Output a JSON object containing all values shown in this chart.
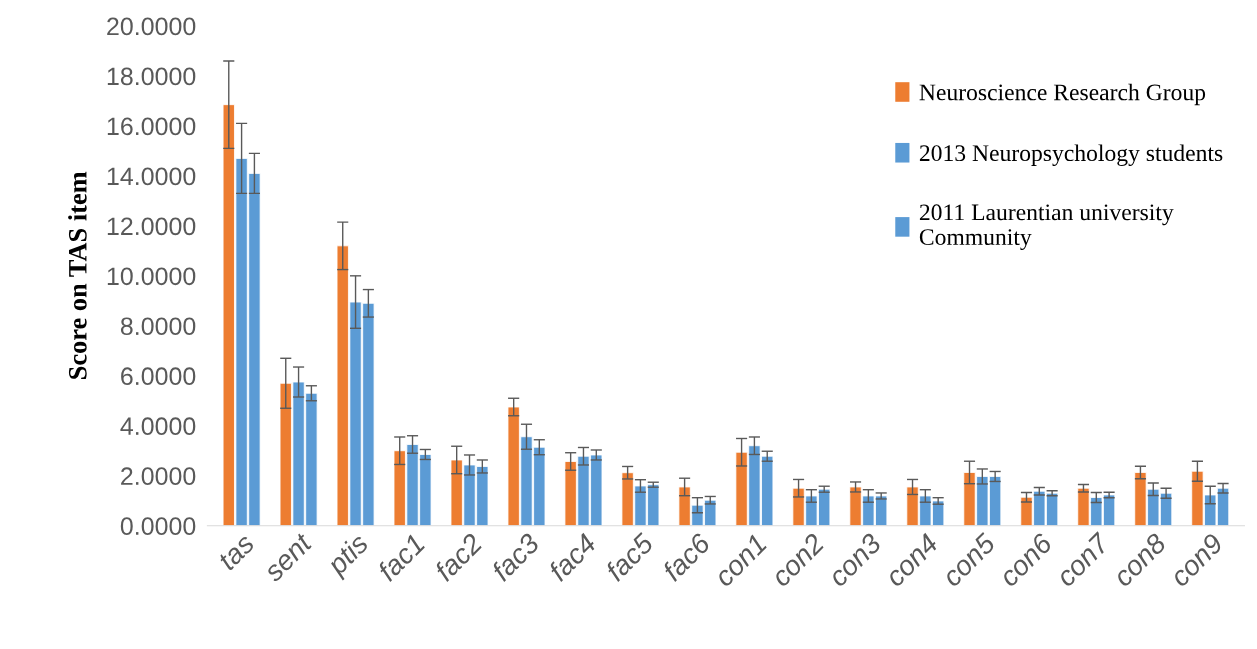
{
  "chart_data": {
    "type": "bar",
    "ylabel": "Score on TAS item",
    "categories": [
      "tas",
      "sent",
      "ptis",
      "fac1",
      "fac2",
      "fac3",
      "fac4",
      "fac5",
      "fac6",
      "con1",
      "con2",
      "con3",
      "con4",
      "con5",
      "con6",
      "con7",
      "con8",
      "con9"
    ],
    "series": [
      {
        "name": "Neuroscience Research Group",
        "color": "#ed7d31",
        "values": [
          16.85,
          5.7,
          11.2,
          3.0,
          2.63,
          4.75,
          2.57,
          2.12,
          1.55,
          2.94,
          1.5,
          1.55,
          1.55,
          2.13,
          1.14,
          1.5,
          2.13,
          2.18
        ],
        "errors": [
          1.75,
          1.0,
          0.95,
          0.55,
          0.55,
          0.35,
          0.35,
          0.25,
          0.35,
          0.55,
          0.35,
          0.2,
          0.3,
          0.45,
          0.19,
          0.15,
          0.25,
          0.4
        ]
      },
      {
        "name": "2013 Neuropsychology students",
        "color": "#5b9bd5",
        "values": [
          14.7,
          5.75,
          8.95,
          3.25,
          2.43,
          3.56,
          2.78,
          1.59,
          0.82,
          3.2,
          1.19,
          1.19,
          1.19,
          1.97,
          1.38,
          1.13,
          1.46,
          1.23
        ],
        "errors": [
          1.4,
          0.6,
          1.05,
          0.35,
          0.4,
          0.5,
          0.35,
          0.25,
          0.3,
          0.35,
          0.25,
          0.25,
          0.25,
          0.3,
          0.15,
          0.2,
          0.25,
          0.35
        ]
      },
      {
        "name": "2011 Laurentian university\nCommunity",
        "color": "#5b9bd5",
        "values": [
          14.1,
          5.3,
          8.9,
          2.85,
          2.37,
          3.14,
          2.83,
          1.64,
          1.02,
          2.78,
          1.46,
          1.19,
          0.99,
          1.97,
          1.3,
          1.23,
          1.3,
          1.5
        ],
        "errors": [
          0.8,
          0.3,
          0.55,
          0.2,
          0.26,
          0.3,
          0.2,
          0.1,
          0.15,
          0.2,
          0.12,
          0.12,
          0.13,
          0.2,
          0.1,
          0.11,
          0.2,
          0.19
        ]
      }
    ],
    "ylim": [
      0,
      20
    ],
    "yticks": [
      {
        "value": 0,
        "label": "0.0000"
      },
      {
        "value": 2,
        "label": "2.0000"
      },
      {
        "value": 4,
        "label": "4.0000"
      },
      {
        "value": 6,
        "label": "6.0000"
      },
      {
        "value": 8,
        "label": "8.0000"
      },
      {
        "value": 10,
        "label": "10.0000"
      },
      {
        "value": 12,
        "label": "12.0000"
      },
      {
        "value": 14,
        "label": "14.0000"
      },
      {
        "value": 16,
        "label": "16.0000"
      },
      {
        "value": 18,
        "label": "18.0000"
      },
      {
        "value": 20,
        "label": "20.0000"
      }
    ],
    "grid": false,
    "legend": "top right"
  }
}
